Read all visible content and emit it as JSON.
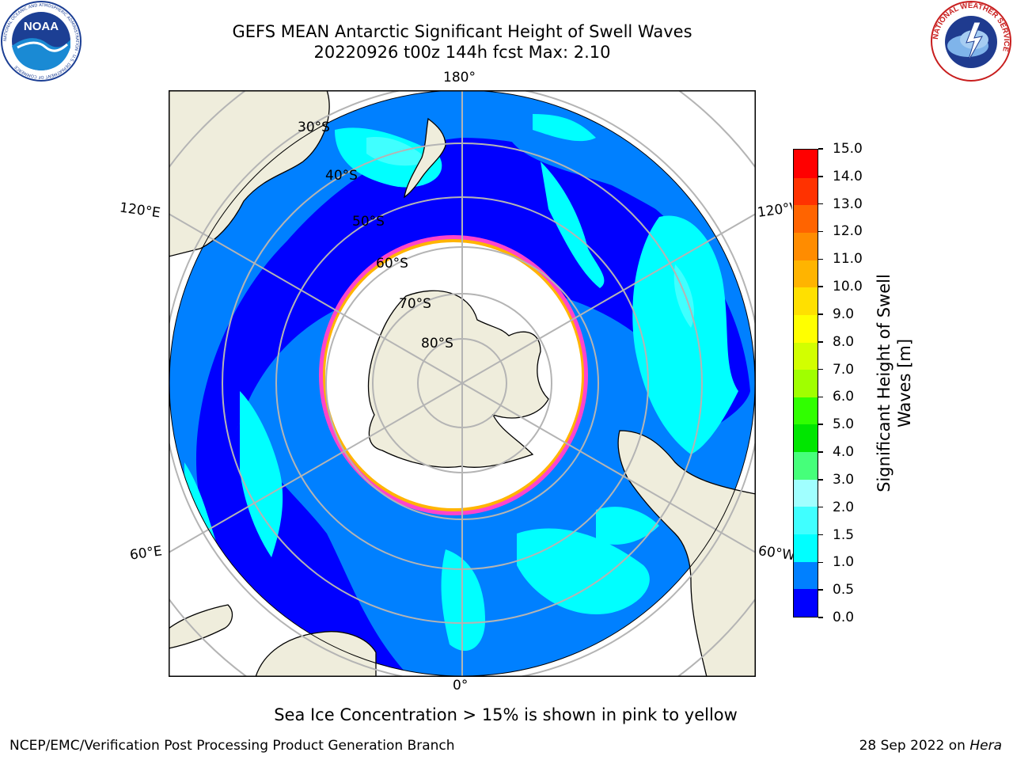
{
  "title": {
    "line1": "GEFS MEAN Antarctic Significant Height of Swell Waves",
    "line2": "20220926 t00z 144h fcst   Max: 2.10"
  },
  "logos": {
    "left": {
      "text": "NOAA",
      "ring_text": "NATIONAL OCEANIC AND ATMOSPHERIC ADMINISTRATION · U.S. DEPARTMENT OF COMMERCE",
      "icon": "noaa-logo-icon"
    },
    "right": {
      "ring_text": "NATIONAL WEATHER SERVICE",
      "icon": "nws-logo-icon"
    }
  },
  "map": {
    "projection": "south-polar-stereographic",
    "longitude_labels": {
      "top": "180°",
      "bottom": "0°",
      "upper_left": "120°E",
      "upper_right": "120°W",
      "lower_left": "60°E",
      "lower_right": "60°W"
    },
    "latitude_labels": [
      "30°S",
      "40°S",
      "50°S",
      "60°S",
      "70°S",
      "80°S"
    ],
    "colors": {
      "land": "#efeddc",
      "ice": "#ffffff",
      "grid": "#b4b4b4",
      "ice_edge": "#ff44cc"
    }
  },
  "colorbar": {
    "label": "Significant Height of Swell Waves [m]",
    "label_line1": "Significant Height of Swell",
    "label_line2": "Waves [m]",
    "ticks": [
      "0.0",
      "0.5",
      "1.0",
      "1.5",
      "2.0",
      "3.0",
      "4.0",
      "5.0",
      "6.0",
      "7.0",
      "8.0",
      "9.0",
      "10.0",
      "11.0",
      "12.0",
      "13.0",
      "14.0",
      "15.0"
    ],
    "colors": [
      "#0000ff",
      "#0080ff",
      "#00ffff",
      "#40ffff",
      "#a0ffff",
      "#46ff7a",
      "#00e600",
      "#30ff00",
      "#a0ff00",
      "#d2ff00",
      "#ffff00",
      "#ffe000",
      "#ffb400",
      "#ff8c00",
      "#ff6400",
      "#ff3200",
      "#ff0000"
    ]
  },
  "footer": {
    "note": "Sea Ice Concentration > 15% is shown in pink to yellow",
    "left": "NCEP/EMC/Verification Post Processing Product Generation Branch",
    "right_prefix": "28 Sep 2022 on ",
    "right_host": "Hera"
  }
}
